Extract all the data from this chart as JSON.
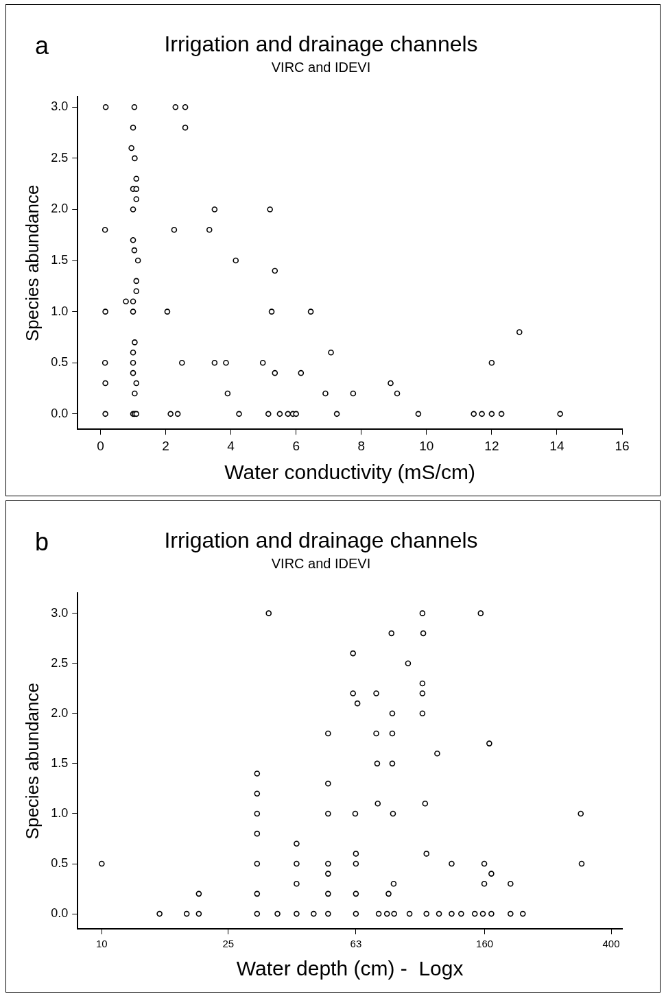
{
  "chart_data": [
    {
      "type": "scatter",
      "title": "Irrigation and drainage channels",
      "subtitle": "VIRC and IDEVI",
      "annotations": [
        "a"
      ],
      "xlabel": "Water conductivity (mS/cm)",
      "ylabel": "Species abundance",
      "marker": "circle",
      "grid": false,
      "legend": false,
      "xlim": [
        -0.7,
        16
      ],
      "xticks": [
        0,
        2,
        4,
        6,
        8,
        10,
        12,
        14,
        16
      ],
      "ylim": [
        -0.15,
        3.1
      ],
      "yticks": [
        {
          "value": 0,
          "label": "0.0"
        },
        {
          "value": 0.5,
          "label": "0.5"
        },
        {
          "value": 1,
          "label": "1.0"
        },
        {
          "value": 1.5,
          "label": "1.5"
        },
        {
          "value": 2,
          "label": "2.0"
        },
        {
          "value": 2.5,
          "label": "2.5"
        },
        {
          "value": 3,
          "label": "3.0"
        }
      ],
      "series": [
        {
          "color": "#000000",
          "x": [
            0.16,
            1.04,
            2.3,
            2.6,
            1.0,
            2.6,
            0.95,
            1.05,
            1.1,
            1.0,
            1.1,
            1.1,
            1.0,
            3.5,
            5.2,
            0.14,
            2.26,
            3.34,
            1.0,
            1.04,
            1.15,
            4.15,
            5.35,
            1.1,
            1.1,
            0.78,
            1.0,
            0.15,
            1.0,
            2.05,
            5.25,
            6.45,
            1.05,
            1.0,
            7.07,
            0.14,
            1.0,
            2.5,
            3.5,
            3.85,
            4.98,
            1.0,
            5.35,
            6.15,
            0.15,
            1.1,
            1.05,
            3.9,
            6.9,
            7.75,
            0.15,
            1.0,
            1.05,
            1.1,
            2.15,
            2.37,
            4.25,
            5.15,
            5.5,
            5.75,
            5.9,
            6.0,
            7.25,
            12.85,
            12.0,
            8.9,
            9.1,
            9.75,
            11.45,
            11.7,
            12.0,
            12.3,
            14.1
          ],
          "values": [
            3.0,
            3.0,
            3.0,
            3.0,
            2.8,
            2.8,
            2.6,
            2.5,
            2.3,
            2.2,
            2.2,
            2.1,
            2.0,
            2.0,
            2.0,
            1.8,
            1.8,
            1.8,
            1.7,
            1.6,
            1.5,
            1.5,
            1.4,
            1.3,
            1.2,
            1.1,
            1.1,
            1.0,
            1.0,
            1.0,
            1.0,
            1.0,
            0.7,
            0.6,
            0.6,
            0.5,
            0.5,
            0.5,
            0.5,
            0.5,
            0.5,
            0.4,
            0.4,
            0.4,
            0.3,
            0.3,
            0.2,
            0.2,
            0.2,
            0.2,
            0,
            0,
            0,
            0,
            0,
            0,
            0,
            0,
            0,
            0,
            0,
            0,
            0,
            0.8,
            0.5,
            0.3,
            0.2,
            0,
            0,
            0,
            0,
            0,
            0
          ]
        }
      ]
    },
    {
      "type": "scatter",
      "title": "Irrigation and drainage channels",
      "subtitle": "VIRC and IDEVI",
      "annotations": [
        "b"
      ],
      "xlabel": "Water depth (cm) -  Logx",
      "ylabel": "Species abundance",
      "marker": "circle",
      "grid": false,
      "legend": false,
      "log": "x",
      "xlim": [
        8.4,
        433
      ],
      "xticks": [
        10,
        25,
        63,
        160,
        400
      ],
      "ylim": [
        -0.15,
        3.2
      ],
      "yticks": [
        {
          "value": 0,
          "label": "0.0"
        },
        {
          "value": 0.5,
          "label": "0.5"
        },
        {
          "value": 1,
          "label": "1.0"
        },
        {
          "value": 1.5,
          "label": "1.5"
        },
        {
          "value": 2,
          "label": "2.0"
        },
        {
          "value": 2.5,
          "label": "2.5"
        },
        {
          "value": 3,
          "label": "3.0"
        }
      ],
      "series": [
        {
          "color": "#000000",
          "x": [
            10,
            15.2,
            18.5,
            20.2,
            20.2,
            33.5,
            30.8,
            30.8,
            30.8,
            30.8,
            30.8,
            30.8,
            30.8,
            35.7,
            41,
            41,
            41,
            41,
            46.4,
            51.5,
            51.5,
            51.5,
            51.5,
            51.5,
            51.5,
            51.5,
            102,
            155.5,
            81.5,
            102.6,
            61.7,
            91.9,
            102,
            61.7,
            73,
            102,
            63.7,
            82,
            102,
            73,
            82,
            165.5,
            113.5,
            73.5,
            82,
            73.8,
            104,
            62.7,
            82.4,
            321,
            63,
            105,
            63,
            126,
            159.6,
            323,
            168,
            82.8,
            159.6,
            193,
            63,
            79.8,
            63,
            74.3,
            78.9,
            83.1,
            92.9,
            105,
            115,
            126,
            135,
            149,
            158,
            168,
            193,
            211
          ],
          "values": [
            0.5,
            0,
            0,
            0,
            0.2,
            3.0,
            1.4,
            1.2,
            1.0,
            0.8,
            0.5,
            0.2,
            0,
            0,
            0.7,
            0.5,
            0.3,
            0,
            0,
            1.8,
            1.3,
            1.0,
            0.5,
            0.4,
            0.2,
            0,
            3.0,
            3.0,
            2.8,
            2.8,
            2.6,
            2.5,
            2.3,
            2.2,
            2.2,
            2.2,
            2.1,
            2.0,
            2.0,
            1.8,
            1.8,
            1.7,
            1.6,
            1.5,
            1.5,
            1.1,
            1.1,
            1.0,
            1.0,
            1.0,
            0.6,
            0.6,
            0.5,
            0.5,
            0.5,
            0.5,
            0.4,
            0.3,
            0.3,
            0.3,
            0.2,
            0.2,
            0,
            0,
            0,
            0,
            0,
            0,
            0,
            0,
            0,
            0,
            0,
            0,
            0,
            0
          ]
        }
      ]
    }
  ]
}
